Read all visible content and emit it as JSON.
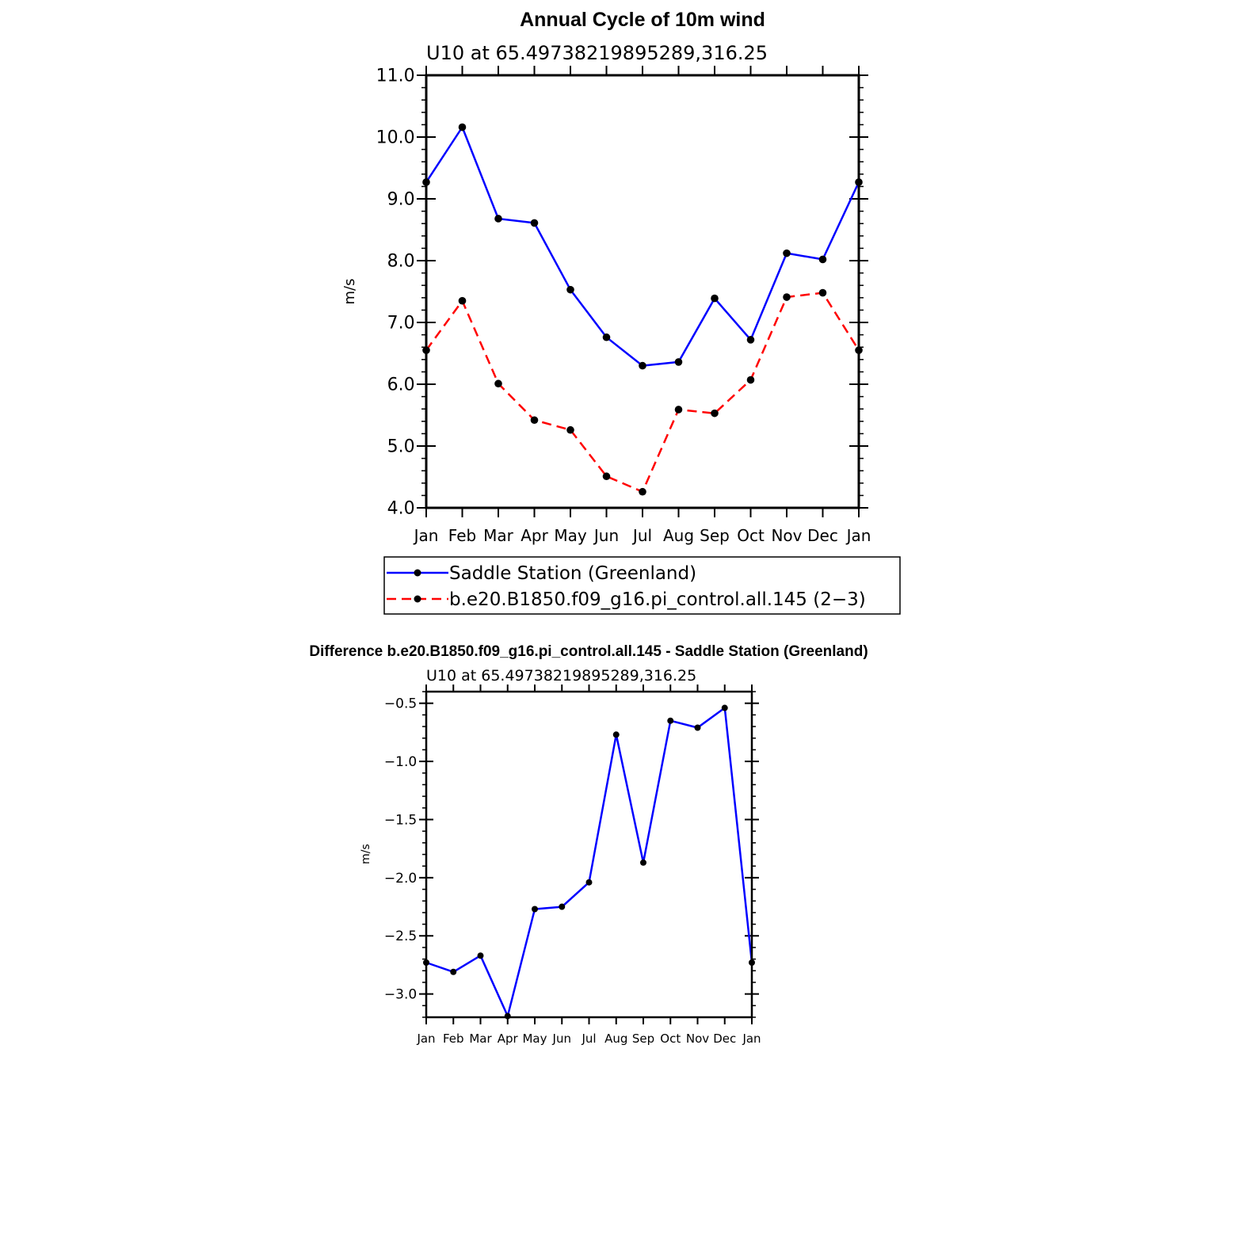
{
  "chart_data": [
    {
      "type": "line",
      "title": "Annual Cycle of 10m wind",
      "subtitle": "U10 at 65.49738219895289,316.25",
      "ylabel": "m/s",
      "xlabel": "",
      "categories": [
        "Jan",
        "Feb",
        "Mar",
        "Apr",
        "May",
        "Jun",
        "Jul",
        "Aug",
        "Sep",
        "Oct",
        "Nov",
        "Dec",
        "Jan"
      ],
      "ylim": [
        4.0,
        11.0
      ],
      "yticks": [
        "4.0",
        "5.0",
        "6.0",
        "7.0",
        "8.0",
        "9.0",
        "10.0",
        "11.0"
      ],
      "legend_position": "bottom",
      "series": [
        {
          "name": "Saddle Station (Greenland)",
          "color": "#0000ff",
          "dash": "solid",
          "values": [
            9.27,
            10.16,
            8.68,
            8.61,
            7.53,
            6.76,
            6.3,
            6.36,
            7.39,
            6.72,
            8.12,
            8.02,
            9.27
          ]
        },
        {
          "name": "b.e20.B1850.f09_g16.pi_control.all.145 (2−3)",
          "color": "#ff0000",
          "dash": "dashed",
          "values": [
            6.55,
            7.35,
            6.01,
            5.42,
            5.26,
            4.51,
            4.26,
            5.59,
            5.53,
            6.07,
            7.41,
            7.48,
            6.55
          ]
        }
      ]
    },
    {
      "type": "line",
      "title": "Difference b.e20.B1850.f09_g16.pi_control.all.145 - Saddle Station (Greenland)",
      "subtitle": "U10 at 65.49738219895289,316.25",
      "ylabel": "m/s",
      "xlabel": "",
      "categories": [
        "Jan",
        "Feb",
        "Mar",
        "Apr",
        "May",
        "Jun",
        "Jul",
        "Aug",
        "Sep",
        "Oct",
        "Nov",
        "Dec",
        "Jan"
      ],
      "ylim": [
        -3.2,
        -0.4
      ],
      "yticks": [
        "−3.0",
        "−2.5",
        "−2.0",
        "−1.5",
        "−1.0",
        "−0.5"
      ],
      "ytick_values": [
        -3.0,
        -2.5,
        -2.0,
        -1.5,
        -1.0,
        -0.5
      ],
      "series": [
        {
          "name": "Difference",
          "color": "#0000ff",
          "dash": "solid",
          "values": [
            -2.73,
            -2.81,
            -2.67,
            -3.19,
            -2.27,
            -2.25,
            -2.04,
            -0.77,
            -1.87,
            -0.65,
            -0.71,
            -0.54,
            -2.73
          ]
        }
      ]
    }
  ]
}
